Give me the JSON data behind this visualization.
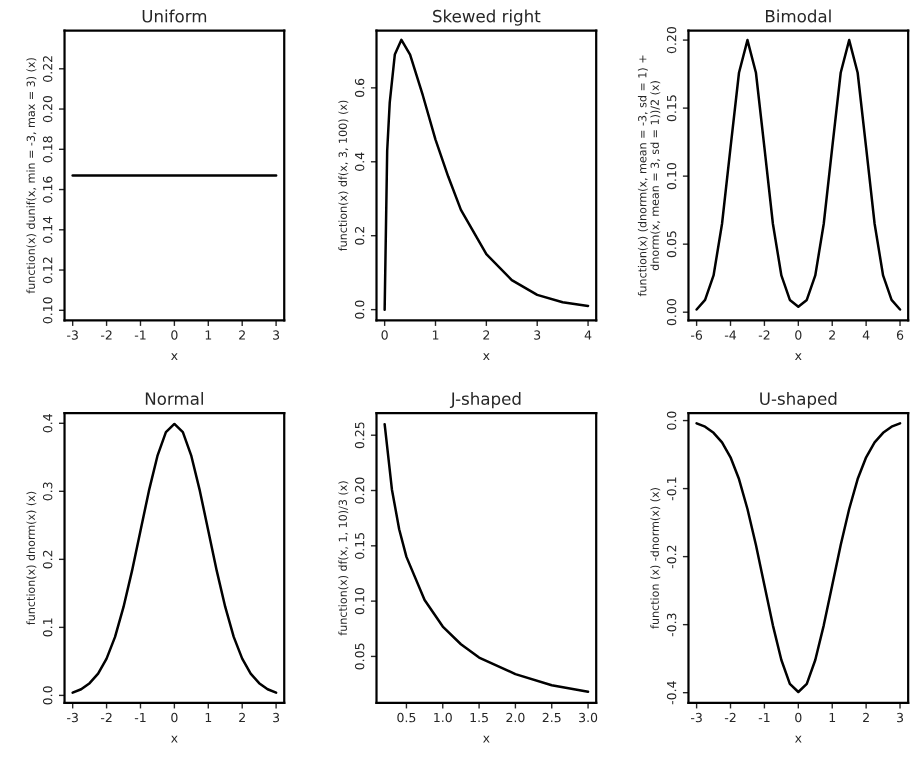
{
  "chart_data": [
    {
      "type": "line",
      "title": "Uniform",
      "xlabel": "x",
      "ylabel": "function(x) dunif(x, min = -3, max = 3) (x)",
      "xlim": [
        -3.24,
        3.24
      ],
      "xticks": [
        -3,
        -2,
        -1,
        0,
        1,
        2,
        3
      ],
      "ylim": [
        0.095,
        0.239
      ],
      "yticks": [
        {
          "value": 0.1,
          "label": "0.10"
        },
        {
          "value": 0.12,
          "label": "0.12"
        },
        {
          "value": 0.14,
          "label": "0.14"
        },
        {
          "value": 0.16,
          "label": "0.16"
        },
        {
          "value": 0.18,
          "label": "0.18"
        },
        {
          "value": 0.2,
          "label": "0.20"
        },
        {
          "value": 0.22,
          "label": "0.22"
        }
      ],
      "series": [
        {
          "color": "#000000",
          "x": [
            -3,
            -2,
            -1,
            0,
            1,
            2,
            3
          ],
          "values": [
            0.167,
            0.167,
            0.167,
            0.167,
            0.167,
            0.167,
            0.167
          ]
        }
      ]
    },
    {
      "type": "line",
      "title": "Skewed right",
      "xlabel": "x",
      "ylabel": "function(x) df(x, 3, 100) (x)",
      "xlim": [
        -0.16,
        4.16
      ],
      "xticks": [
        0,
        1,
        2,
        3,
        4
      ],
      "ylim": [
        -0.029,
        0.755
      ],
      "yticks": [
        {
          "value": 0.0,
          "label": "0.0"
        },
        {
          "value": 0.2,
          "label": "0.2"
        },
        {
          "value": 0.4,
          "label": "0.4"
        },
        {
          "value": 0.6,
          "label": "0.6"
        }
      ],
      "series": [
        {
          "color": "#000000",
          "x": [
            0,
            0.05,
            0.1,
            0.2,
            0.33,
            0.5,
            0.75,
            1,
            1.25,
            1.5,
            2,
            2.5,
            3,
            3.5,
            4
          ],
          "values": [
            0,
            0.43,
            0.56,
            0.69,
            0.73,
            0.69,
            0.58,
            0.46,
            0.36,
            0.27,
            0.15,
            0.08,
            0.04,
            0.02,
            0.01
          ]
        }
      ]
    },
    {
      "type": "line",
      "title": "Bimodal",
      "xlabel": "x",
      "ylabel": "function(x) (dnorm(x, mean = -3, sd = 1) +\ndnorm(x, mean = 3, sd = 1))/2 (x)",
      "xlim": [
        -6.48,
        6.48
      ],
      "xticks": [
        -6,
        -4,
        -2,
        0,
        2,
        4,
        6
      ],
      "ylim": [
        -0.006,
        0.207
      ],
      "yticks": [
        {
          "value": 0.0,
          "label": "0.00"
        },
        {
          "value": 0.05,
          "label": "0.05"
        },
        {
          "value": 0.1,
          "label": "0.10"
        },
        {
          "value": 0.15,
          "label": "0.15"
        },
        {
          "value": 0.2,
          "label": "0.20"
        }
      ],
      "series": [
        {
          "color": "#000000",
          "x": [
            -6,
            -5.5,
            -5,
            -4.5,
            -4,
            -3.5,
            -3,
            -2.5,
            -2,
            -1.5,
            -1,
            -0.5,
            0,
            0.5,
            1,
            1.5,
            2,
            2.5,
            3,
            3.5,
            4,
            4.5,
            5,
            5.5,
            6
          ],
          "values": [
            0.002,
            0.009,
            0.027,
            0.065,
            0.121,
            0.176,
            0.2,
            0.176,
            0.121,
            0.065,
            0.027,
            0.009,
            0.004,
            0.009,
            0.027,
            0.065,
            0.121,
            0.176,
            0.2,
            0.176,
            0.121,
            0.065,
            0.027,
            0.009,
            0.002
          ]
        }
      ]
    },
    {
      "type": "line",
      "title": "Normal",
      "xlabel": "x",
      "ylabel": "function(x) dnorm(x) (x)",
      "xlim": [
        -3.24,
        3.24
      ],
      "xticks": [
        -3,
        -2,
        -1,
        0,
        1,
        2,
        3
      ],
      "ylim": [
        -0.011,
        0.415
      ],
      "yticks": [
        {
          "value": 0.0,
          "label": "0.0"
        },
        {
          "value": 0.1,
          "label": "0.1"
        },
        {
          "value": 0.2,
          "label": "0.2"
        },
        {
          "value": 0.3,
          "label": "0.3"
        },
        {
          "value": 0.4,
          "label": "0.4"
        }
      ],
      "series": [
        {
          "color": "#000000",
          "x": [
            -3,
            -2.75,
            -2.5,
            -2.25,
            -2,
            -1.75,
            -1.5,
            -1.25,
            -1,
            -0.75,
            -0.5,
            -0.25,
            0,
            0.25,
            0.5,
            0.75,
            1,
            1.25,
            1.5,
            1.75,
            2,
            2.25,
            2.5,
            2.75,
            3
          ],
          "values": [
            0.004,
            0.009,
            0.018,
            0.032,
            0.054,
            0.086,
            0.13,
            0.183,
            0.242,
            0.301,
            0.352,
            0.387,
            0.399,
            0.387,
            0.352,
            0.301,
            0.242,
            0.183,
            0.13,
            0.086,
            0.054,
            0.032,
            0.018,
            0.009,
            0.004
          ]
        }
      ]
    },
    {
      "type": "line",
      "title": "J-shaped",
      "xlabel": "x",
      "ylabel": "function(x) df(x, 1, 10)/3 (x)",
      "xlim": [
        0.088,
        3.112
      ],
      "xticks": [
        {
          "value": 0.5,
          "label": "0.5"
        },
        {
          "value": 1.0,
          "label": "1.0"
        },
        {
          "value": 1.5,
          "label": "1.5"
        },
        {
          "value": 2.0,
          "label": "2.0"
        },
        {
          "value": 2.5,
          "label": "2.5"
        },
        {
          "value": 3.0,
          "label": "3.0"
        }
      ],
      "ylim": [
        0.008,
        0.27
      ],
      "yticks": [
        {
          "value": 0.05,
          "label": "0.05"
        },
        {
          "value": 0.1,
          "label": "0.10"
        },
        {
          "value": 0.15,
          "label": "0.15"
        },
        {
          "value": 0.2,
          "label": "0.20"
        },
        {
          "value": 0.25,
          "label": "0.25"
        }
      ],
      "series": [
        {
          "color": "#000000",
          "x": [
            0.2,
            0.3,
            0.4,
            0.5,
            0.75,
            1,
            1.25,
            1.5,
            2,
            2.5,
            3
          ],
          "values": [
            0.26,
            0.201,
            0.165,
            0.14,
            0.101,
            0.077,
            0.061,
            0.049,
            0.034,
            0.024,
            0.018
          ]
        }
      ]
    },
    {
      "type": "line",
      "title": "U-shaped",
      "xlabel": "x",
      "ylabel": "function (x) -dnorm(x) (x)",
      "xlim": [
        -3.24,
        3.24
      ],
      "xticks": [
        -3,
        -2,
        -1,
        0,
        1,
        2,
        3
      ],
      "ylim": [
        -0.415,
        0.011
      ],
      "yticks": [
        {
          "value": 0.0,
          "label": "0.0"
        },
        {
          "value": -0.1,
          "label": "-0.1"
        },
        {
          "value": -0.2,
          "label": "-0.2"
        },
        {
          "value": -0.3,
          "label": "-0.3"
        },
        {
          "value": -0.4,
          "label": "-0.4"
        }
      ],
      "series": [
        {
          "color": "#000000",
          "x": [
            -3,
            -2.75,
            -2.5,
            -2.25,
            -2,
            -1.75,
            -1.5,
            -1.25,
            -1,
            -0.75,
            -0.5,
            -0.25,
            0,
            0.25,
            0.5,
            0.75,
            1,
            1.25,
            1.5,
            1.75,
            2,
            2.25,
            2.5,
            2.75,
            3
          ],
          "values": [
            -0.004,
            -0.009,
            -0.018,
            -0.032,
            -0.054,
            -0.086,
            -0.13,
            -0.183,
            -0.242,
            -0.301,
            -0.352,
            -0.387,
            -0.399,
            -0.387,
            -0.352,
            -0.301,
            -0.242,
            -0.183,
            -0.13,
            -0.086,
            -0.054,
            -0.032,
            -0.018,
            -0.009,
            -0.004
          ]
        }
      ]
    }
  ]
}
